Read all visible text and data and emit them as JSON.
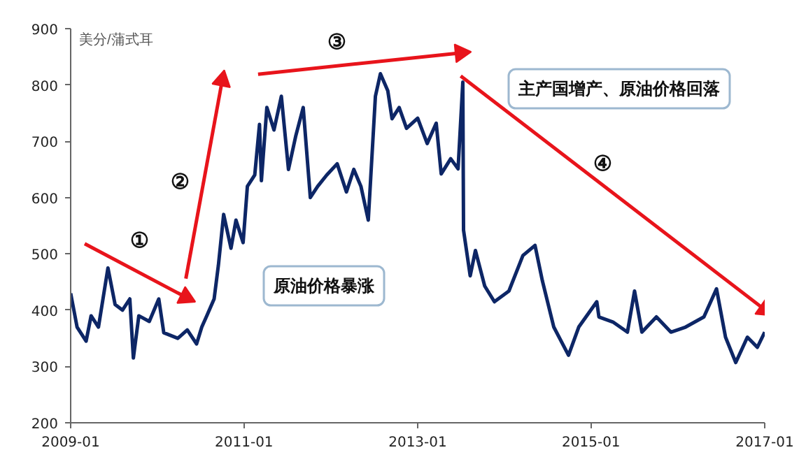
{
  "chart_data": {
    "type": "line",
    "ylabel": "美分/蒲式耳",
    "xlim": [
      "2009-01",
      "2017-01"
    ],
    "xticks": [
      "2009-01",
      "2011-01",
      "2013-01",
      "2015-01",
      "2017-01"
    ],
    "ylim": [
      200,
      900
    ],
    "yticks": [
      200,
      300,
      400,
      500,
      600,
      700,
      800,
      900
    ],
    "grid": false,
    "series": [
      {
        "color": "#0d2666",
        "x": [
          "2009-01",
          "2009-01-28",
          "2009-03-07",
          "2009-03-28",
          "2009-04-28",
          "2009-06-07",
          "2009-07-07",
          "2009-08-07",
          "2009-09-07",
          "2009-09-22",
          "2009-10-15",
          "2009-11-28",
          "2010-01-07",
          "2010-01-28",
          "2010-03-28",
          "2010-05-07",
          "2010-06-15",
          "2010-07-07",
          "2010-07-28",
          "2010-08-28",
          "2010-09-15",
          "2010-10-07",
          "2010-11-07",
          "2010-11-28",
          "2010-12-28",
          "2011-01-15",
          "2011-02-15",
          "2011-03-07",
          "2011-03-15",
          "2011-04-07",
          "2011-05-07",
          "2011-06-07",
          "2011-07-07",
          "2011-08-07",
          "2011-09-07",
          "2011-10-07",
          "2011-11-07",
          "2011-12-15",
          "2012-01-28",
          "2012-03-07",
          "2012-04-07",
          "2012-05-07",
          "2012-06-07",
          "2012-07-07",
          "2012-07-28",
          "2012-08-28",
          "2012-09-15",
          "2012-10-15",
          "2012-11-15",
          "2013-01",
          "2013-02-10",
          "2013-03-20",
          "2013-04-10",
          "2013-05-20",
          "2013-06-20",
          "2013-07-10",
          "2013-07-13",
          "2013-08-10",
          "2013-09",
          "2013-10-10",
          "2013-11-20",
          "2014-01-20",
          "2014-03-20",
          "2014-05-10",
          "2014-06-10",
          "2014-07-28",
          "2014-09-28",
          "2014-11-10",
          "2015-01-25",
          "2015-02-03",
          "2015-04-03",
          "2015-06-03",
          "2015-07-03",
          "2015-08-03",
          "2015-10-03",
          "2015-12-03",
          "2016-02-03",
          "2016-04-20",
          "2016-06-12",
          "2016-07-20",
          "2016-09",
          "2016-10-20",
          "2016-12",
          "2017-01"
        ],
        "values": [
          430,
          370,
          345,
          390,
          370,
          475,
          410,
          400,
          420,
          315,
          390,
          380,
          420,
          360,
          350,
          365,
          340,
          370,
          390,
          420,
          480,
          570,
          510,
          560,
          520,
          620,
          640,
          730,
          630,
          760,
          720,
          780,
          650,
          710,
          760,
          600,
          620,
          640,
          660,
          610,
          650,
          620,
          560,
          780,
          820,
          790,
          740,
          760,
          723,
          741,
          696,
          732,
          642,
          669,
          651,
          805,
          542,
          461,
          506,
          443,
          415,
          434,
          497,
          515,
          452,
          370,
          320,
          370,
          415,
          388,
          379,
          361,
          434,
          361,
          388,
          361,
          370,
          388,
          438,
          352,
          307,
          352,
          334,
          361
        ]
      },
      {
        "type": "line",
        "color": "#e8141b",
        "x": [
          "2009-03",
          "2010-05"
        ],
        "values": [
          518,
          423
        ]
      },
      {
        "type": "line",
        "color": "#e8141b",
        "x": [
          "2010-05",
          "2010-10"
        ],
        "values": [
          456,
          808
        ]
      },
      {
        "type": "line",
        "color": "#e8141b",
        "x": [
          "2011-03",
          "2013-07"
        ],
        "values": [
          819,
          857
        ]
      },
      {
        "type": "line",
        "color": "#e8141b",
        "x": [
          "2013-07",
          "2017-01"
        ],
        "values": [
          816,
          401
        ]
      }
    ],
    "annotations": [
      "①",
      "②",
      "③",
      "④",
      "原油价格暴涨",
      "主产国增产、原油价格回落"
    ]
  }
}
